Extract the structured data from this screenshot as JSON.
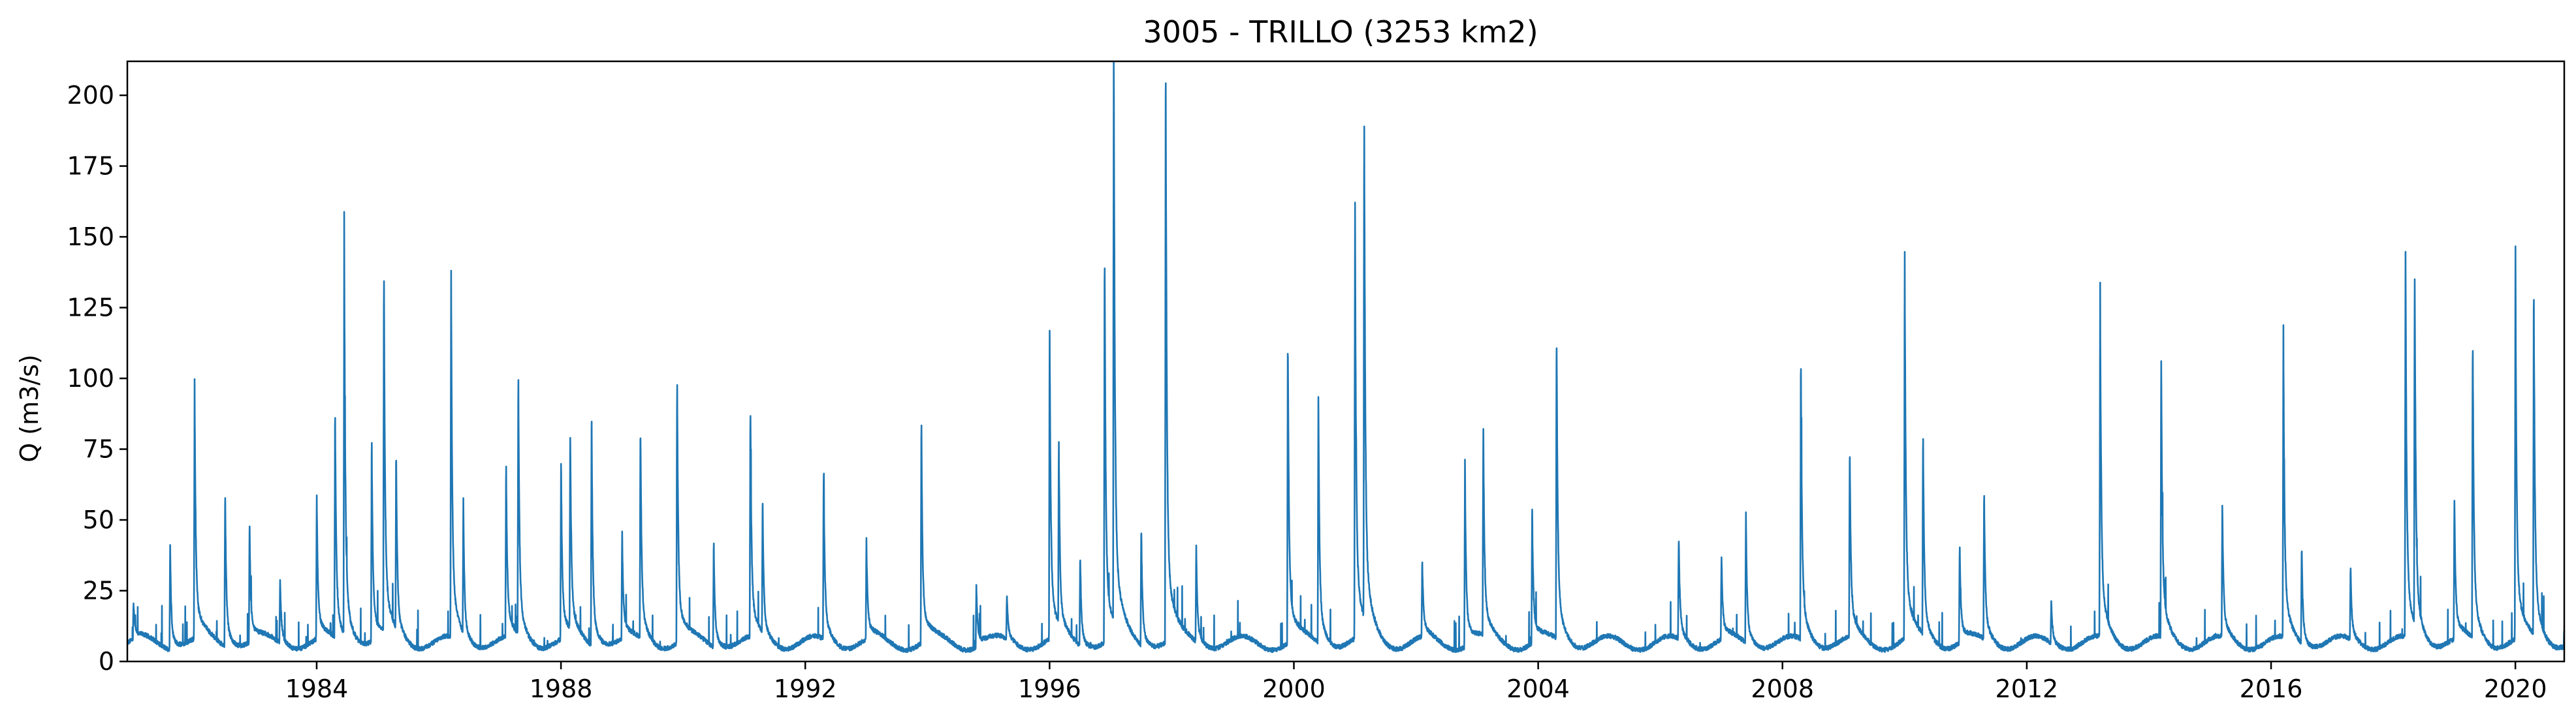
{
  "chart_data": {
    "type": "line",
    "title": "3005 - TRILLO (3253 km2)",
    "xlabel": "",
    "ylabel": "Q (m3/s)",
    "xlim": [
      1980.9,
      2020.8
    ],
    "ylim": [
      0,
      212
    ],
    "x_ticks": [
      "1984",
      "1988",
      "1992",
      "1996",
      "2000",
      "2004",
      "2008",
      "2012",
      "2016",
      "2020"
    ],
    "y_ticks": [
      "0",
      "25",
      "50",
      "75",
      "100",
      "125",
      "150",
      "175",
      "200"
    ],
    "grid": false,
    "legend": "none",
    "series": [
      {
        "color": "#1f77b4",
        "peaks": [
          [
            1981.0,
            12
          ],
          [
            1981.6,
            33
          ],
          [
            1982.0,
            85
          ],
          [
            1982.5,
            53
          ],
          [
            1982.9,
            40
          ],
          [
            1983.4,
            22
          ],
          [
            1984.0,
            47
          ],
          [
            1984.3,
            78
          ],
          [
            1984.45,
            134
          ],
          [
            1984.9,
            68
          ],
          [
            1985.1,
            122
          ],
          [
            1985.3,
            63
          ],
          [
            1986.2,
            118
          ],
          [
            1986.4,
            47
          ],
          [
            1987.1,
            58
          ],
          [
            1987.3,
            89
          ],
          [
            1988.0,
            59
          ],
          [
            1988.15,
            70
          ],
          [
            1988.5,
            77
          ],
          [
            1989.0,
            35
          ],
          [
            1989.3,
            72
          ],
          [
            1989.9,
            90
          ],
          [
            1990.5,
            35
          ],
          [
            1991.1,
            76
          ],
          [
            1991.3,
            46
          ],
          [
            1992.3,
            56
          ],
          [
            1993.0,
            33
          ],
          [
            1993.9,
            75
          ],
          [
            1994.8,
            20
          ],
          [
            1995.3,
            15
          ],
          [
            1996.0,
            104
          ],
          [
            1996.15,
            65
          ],
          [
            1996.5,
            31
          ],
          [
            1996.9,
            130
          ],
          [
            1997.05,
            202
          ],
          [
            1997.5,
            41
          ],
          [
            1997.9,
            193
          ],
          [
            1998.4,
            32
          ],
          [
            1999.9,
            103
          ],
          [
            2000.4,
            81
          ],
          [
            2001.0,
            142
          ],
          [
            2001.15,
            177
          ],
          [
            2002.1,
            26
          ],
          [
            2002.8,
            60
          ],
          [
            2003.1,
            71
          ],
          [
            2003.9,
            45
          ],
          [
            2004.3,
            103
          ],
          [
            2006.3,
            35
          ],
          [
            2007.0,
            28
          ],
          [
            2007.4,
            43
          ],
          [
            2008.3,
            94
          ],
          [
            2009.1,
            63
          ],
          [
            2010.0,
            126
          ],
          [
            2010.3,
            70
          ],
          [
            2010.9,
            33
          ],
          [
            2011.3,
            49
          ],
          [
            2012.4,
            14
          ],
          [
            2013.2,
            114
          ],
          [
            2014.2,
            93
          ],
          [
            2015.2,
            44
          ],
          [
            2016.2,
            100
          ],
          [
            2016.5,
            34
          ],
          [
            2017.3,
            24
          ],
          [
            2018.2,
            127
          ],
          [
            2018.35,
            127
          ],
          [
            2019.0,
            47
          ],
          [
            2019.3,
            103
          ],
          [
            2020.0,
            125
          ],
          [
            2020.3,
            118
          ],
          [
            2020.8,
            8
          ]
        ]
      }
    ]
  }
}
